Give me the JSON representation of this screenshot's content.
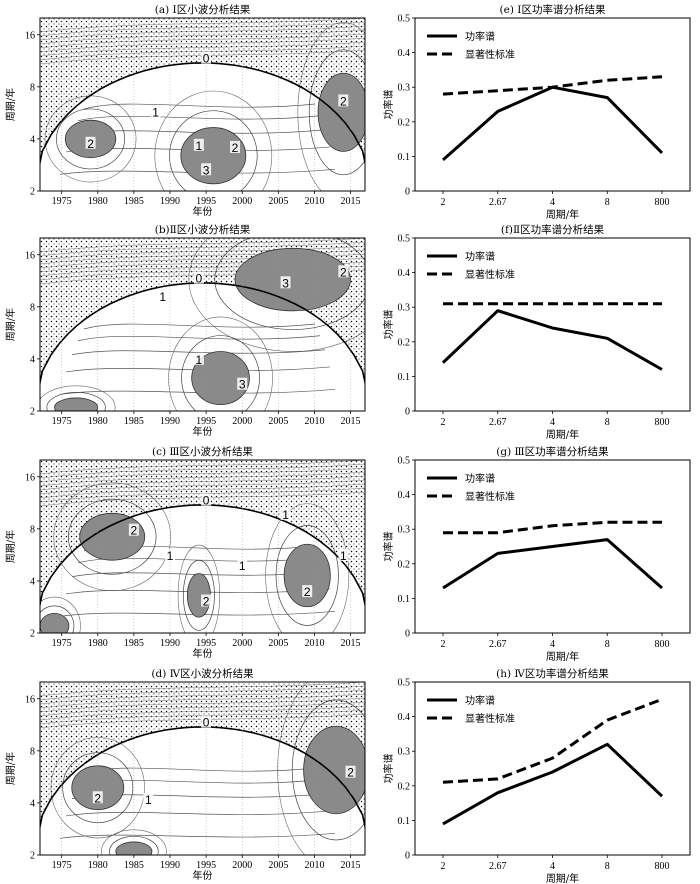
{
  "chart_data": [
    {
      "type": "heatmap",
      "title": "(a) Ⅰ区小波分析结果",
      "xlabel": "年份",
      "ylabel": "周期/年",
      "xlim": [
        1972,
        2017
      ],
      "ylim": [
        2,
        20
      ],
      "yscale": "log2",
      "xticks": [
        "1975",
        "1980",
        "1985",
        "1990",
        "1995",
        "2000",
        "2005",
        "2010",
        "2015"
      ],
      "yticks": [
        "2",
        "4",
        "8",
        "16"
      ],
      "contour_labels": [
        {
          "text": "0",
          "x": 1995,
          "y": 11.5
        },
        {
          "text": "1",
          "x": 1988,
          "y": 5.6
        },
        {
          "text": "2",
          "x": 1979,
          "y": 3.7
        },
        {
          "text": "1",
          "x": 1994,
          "y": 3.6
        },
        {
          "text": "2",
          "x": 1999,
          "y": 3.5
        },
        {
          "text": "3",
          "x": 1995,
          "y": 2.6
        },
        {
          "text": "2",
          "x": 2014,
          "y": 6.5
        }
      ],
      "significant_regions": [
        {
          "cx": 1979,
          "cy": 4.0,
          "rx": 3.5,
          "ry": 0.12
        },
        {
          "cx": 1996,
          "cy": 3.2,
          "rx": 4.5,
          "ry": 0.18
        },
        {
          "cx": 2014,
          "cy": 5.7,
          "rx": 3.5,
          "ry": 0.25
        }
      ]
    },
    {
      "type": "line",
      "title": "(e) Ⅰ区功率谱分析结果",
      "xlabel": "周期/年",
      "ylabel": "功率谱",
      "categories": [
        "2",
        "2.67",
        "4",
        "8",
        "800"
      ],
      "ylim": [
        0,
        0.5
      ],
      "yticks": [
        "0",
        "0.1",
        "0.2",
        "0.3",
        "0.4",
        "0.5"
      ],
      "legend": "top-left",
      "series": [
        {
          "name": "功率谱",
          "style": "solid",
          "values": [
            0.09,
            0.23,
            0.3,
            0.27,
            0.11
          ]
        },
        {
          "name": "显著性标准",
          "style": "dashed",
          "values": [
            0.28,
            0.29,
            0.3,
            0.32,
            0.33
          ]
        }
      ]
    },
    {
      "type": "heatmap",
      "title": "(b)Ⅱ区小波分析结果",
      "xlabel": "年份",
      "ylabel": "周期/年",
      "xlim": [
        1972,
        2017
      ],
      "ylim": [
        2,
        20
      ],
      "yscale": "log2",
      "xticks": [
        "1975",
        "1980",
        "1985",
        "1990",
        "1995",
        "2000",
        "2005",
        "2010",
        "2015"
      ],
      "yticks": [
        "2",
        "4",
        "8",
        "16"
      ],
      "contour_labels": [
        {
          "text": "0",
          "x": 1994,
          "y": 11.5
        },
        {
          "text": "1",
          "x": 1989,
          "y": 9.0
        },
        {
          "text": "3",
          "x": 2006,
          "y": 10.8
        },
        {
          "text": "2",
          "x": 2014,
          "y": 12.5
        },
        {
          "text": "1",
          "x": 1994,
          "y": 3.9
        },
        {
          "text": "3",
          "x": 2000,
          "y": 2.8
        }
      ],
      "significant_regions": [
        {
          "cx": 2007,
          "cy": 11.5,
          "rx": 8,
          "ry": 0.2
        },
        {
          "cx": 1997,
          "cy": 3.1,
          "rx": 4,
          "ry": 0.17
        },
        {
          "cx": 1977,
          "cy": 2.1,
          "rx": 3,
          "ry": 0.06
        }
      ]
    },
    {
      "type": "line",
      "title": "(f)Ⅱ区功率谱分析结果",
      "xlabel": "周期/年",
      "ylabel": "功率谱",
      "categories": [
        "2",
        "2.67",
        "4",
        "8",
        "800"
      ],
      "ylim": [
        0,
        0.5
      ],
      "yticks": [
        "0",
        "0.1",
        "0.2",
        "0.3",
        "0.4",
        "0.5"
      ],
      "legend": "top-left",
      "series": [
        {
          "name": "功率谱",
          "style": "solid",
          "values": [
            0.14,
            0.29,
            0.24,
            0.21,
            0.12
          ]
        },
        {
          "name": "显著性标准",
          "style": "dashed",
          "values": [
            0.31,
            0.31,
            0.31,
            0.31,
            0.31
          ]
        }
      ]
    },
    {
      "type": "heatmap",
      "title": "(c) Ⅲ区小波分析结果",
      "xlabel": "年份",
      "ylabel": "周期/年",
      "xlim": [
        1972,
        2017
      ],
      "ylim": [
        2,
        20
      ],
      "yscale": "log2",
      "xticks": [
        "1975",
        "1980",
        "1985",
        "1990",
        "1995",
        "2000",
        "2005",
        "2010",
        "2015"
      ],
      "yticks": [
        "2",
        "4",
        "8",
        "16"
      ],
      "contour_labels": [
        {
          "text": "0",
          "x": 1995,
          "y": 11.5
        },
        {
          "text": "1",
          "x": 2006,
          "y": 9.5
        },
        {
          "text": "2",
          "x": 1985,
          "y": 7.7
        },
        {
          "text": "1",
          "x": 1990,
          "y": 5.5
        },
        {
          "text": "1",
          "x": 2000,
          "y": 4.8
        },
        {
          "text": "1",
          "x": 2014,
          "y": 5.5
        },
        {
          "text": "2",
          "x": 1995,
          "y": 3.0
        },
        {
          "text": "2",
          "x": 2009,
          "y": 3.4
        }
      ],
      "significant_regions": [
        {
          "cx": 1982,
          "cy": 7.2,
          "rx": 4.5,
          "ry": 0.15
        },
        {
          "cx": 1994,
          "cy": 3.3,
          "rx": 1.6,
          "ry": 0.14
        },
        {
          "cx": 2009,
          "cy": 4.3,
          "rx": 3.2,
          "ry": 0.2
        },
        {
          "cx": 1974,
          "cy": 2.2,
          "rx": 2,
          "ry": 0.08
        }
      ]
    },
    {
      "type": "line",
      "title": "(g) Ⅲ区功率谱分析结果",
      "xlabel": "周期/年",
      "ylabel": "功率谱",
      "categories": [
        "2",
        "2.67",
        "4",
        "8",
        "800"
      ],
      "ylim": [
        0,
        0.5
      ],
      "yticks": [
        "0",
        "0.1",
        "0.2",
        "0.3",
        "0.4",
        "0.5"
      ],
      "legend": "top-left",
      "series": [
        {
          "name": "功率谱",
          "style": "solid",
          "values": [
            0.13,
            0.23,
            0.25,
            0.27,
            0.13
          ]
        },
        {
          "name": "显著性标准",
          "style": "dashed",
          "values": [
            0.29,
            0.29,
            0.31,
            0.32,
            0.32
          ]
        }
      ]
    },
    {
      "type": "heatmap",
      "title": "(d) Ⅳ区小波分析结果",
      "xlabel": "年份",
      "ylabel": "周期/年",
      "xlim": [
        1972,
        2017
      ],
      "ylim": [
        2,
        20
      ],
      "yscale": "log2",
      "xticks": [
        "1975",
        "1980",
        "1985",
        "1990",
        "1995",
        "2000",
        "2005",
        "2010",
        "2015"
      ],
      "yticks": [
        "2",
        "4",
        "8",
        "16"
      ],
      "contour_labels": [
        {
          "text": "0",
          "x": 1995,
          "y": 11.5
        },
        {
          "text": "2",
          "x": 1980,
          "y": 4.2
        },
        {
          "text": "1",
          "x": 1987,
          "y": 4.1
        },
        {
          "text": "2",
          "x": 2015,
          "y": 5.9
        }
      ],
      "significant_regions": [
        {
          "cx": 1980,
          "cy": 4.9,
          "rx": 3.6,
          "ry": 0.14
        },
        {
          "cx": 2013,
          "cy": 6.2,
          "rx": 4.5,
          "ry": 0.28
        },
        {
          "cx": 1985,
          "cy": 2.1,
          "rx": 2.5,
          "ry": 0.06
        }
      ]
    },
    {
      "type": "line",
      "title": "(h) Ⅳ区功率谱分析结果",
      "xlabel": "周期/年",
      "ylabel": "功率谱",
      "categories": [
        "2",
        "2.67",
        "4",
        "8",
        "800"
      ],
      "ylim": [
        0,
        0.5
      ],
      "yticks": [
        "0",
        "0.1",
        "0.2",
        "0.3",
        "0.4",
        "0.5"
      ],
      "legend": "top-left",
      "series": [
        {
          "name": "功率谱",
          "style": "solid",
          "values": [
            0.09,
            0.18,
            0.24,
            0.32,
            0.17
          ]
        },
        {
          "name": "显著性标准",
          "style": "dashed",
          "values": [
            0.21,
            0.22,
            0.28,
            0.39,
            0.45
          ]
        }
      ]
    }
  ]
}
